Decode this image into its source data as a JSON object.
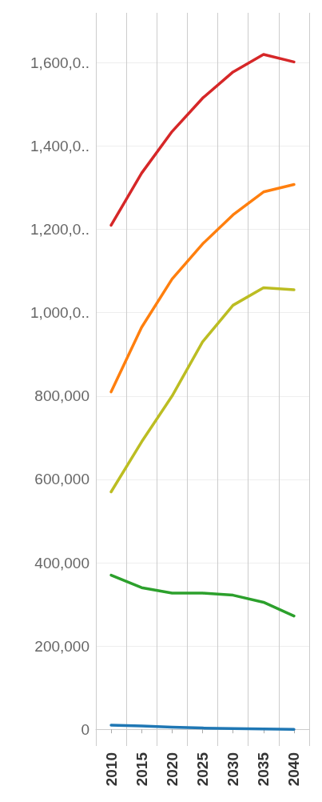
{
  "chart_data": {
    "type": "line",
    "categories": [
      "2010",
      "2015",
      "2020",
      "2025",
      "2030",
      "2035",
      "2040"
    ],
    "series": [
      {
        "color": "#d62728",
        "values": [
          1210000,
          1335000,
          1435000,
          1515000,
          1578000,
          1620000,
          1602000
        ]
      },
      {
        "color": "#ff7f0e",
        "values": [
          810000,
          965000,
          1081000,
          1165000,
          1235000,
          1290000,
          1308000
        ]
      },
      {
        "color": "#bcbd22",
        "values": [
          570000,
          690000,
          800000,
          930000,
          1018000,
          1060000,
          1055000
        ]
      },
      {
        "color": "#2ca02c",
        "values": [
          370000,
          340000,
          327000,
          327000,
          322000,
          305000,
          272000
        ]
      },
      {
        "color": "#1f77b4",
        "values": [
          10000,
          8000,
          5000,
          3000,
          2000,
          1000,
          0
        ]
      }
    ],
    "ylim": [
      -40000,
      1720000
    ],
    "yticks": [
      0,
      {
        "value": 200000,
        "label": "200,000"
      },
      {
        "value": 400000,
        "label": "400,000"
      },
      {
        "value": 600000,
        "label": "600,000"
      },
      {
        "value": 800000,
        "label": "800,000"
      },
      {
        "value": 1000000,
        "label": "1,000,0.."
      },
      {
        "value": 1200000,
        "label": "1,200,0.."
      },
      {
        "value": 1400000,
        "label": "1,400,0.."
      },
      {
        "value": 1600000,
        "label": "1,600,0.."
      }
    ],
    "grid": true,
    "marker": "none",
    "line_style": "solid"
  }
}
